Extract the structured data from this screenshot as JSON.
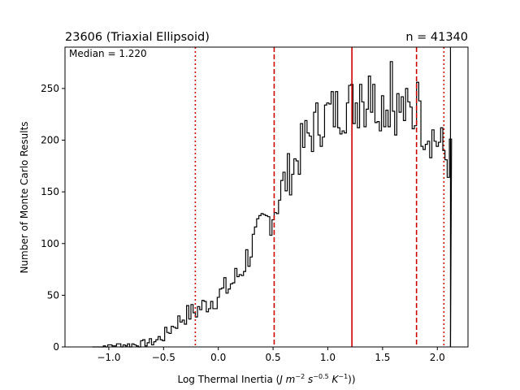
{
  "chart_data": {
    "type": "histogram",
    "title_left": "23606 (Triaxial Ellipsoid)",
    "title_right": "n = 41340",
    "annotation": "Median = 1.220",
    "xlabel": "Log Thermal Inertia (J m⁻² s⁻⁰·⁵ K⁻¹))",
    "ylabel": "Number of Monte Carlo Results",
    "xlim": [
      -1.4,
      2.28
    ],
    "ylim": [
      0,
      290
    ],
    "xticks": [
      -1.0,
      -0.5,
      0.0,
      0.5,
      1.0,
      1.5,
      2.0
    ],
    "xtick_labels": [
      "−1.0",
      "−0.5",
      "0.0",
      "0.5",
      "1.0",
      "1.5",
      "2.0"
    ],
    "yticks": [
      0,
      50,
      100,
      150,
      200,
      250
    ],
    "ytick_labels": [
      "0",
      "50",
      "100",
      "150",
      "200",
      "250"
    ],
    "median": 1.22,
    "dashed_lines": [
      0.51,
      1.81
    ],
    "dotted_lines": [
      -0.21,
      2.06
    ],
    "cutoff_line": 2.12,
    "line_color": "#cc0000",
    "hist_color": "#000000",
    "profile": [
      [
        -1.15,
        0
      ],
      [
        -1.0,
        1
      ],
      [
        -0.9,
        2
      ],
      [
        -0.8,
        2
      ],
      [
        -0.7,
        3
      ],
      [
        -0.6,
        5
      ],
      [
        -0.5,
        10
      ],
      [
        -0.4,
        22
      ],
      [
        -0.3,
        30
      ],
      [
        -0.2,
        35
      ],
      [
        -0.1,
        42
      ],
      [
        0.0,
        50
      ],
      [
        0.1,
        58
      ],
      [
        0.2,
        72
      ],
      [
        0.3,
        95
      ],
      [
        0.4,
        115
      ],
      [
        0.5,
        130
      ],
      [
        0.6,
        158
      ],
      [
        0.7,
        178
      ],
      [
        0.8,
        200
      ],
      [
        0.9,
        215
      ],
      [
        1.0,
        225
      ],
      [
        1.1,
        230
      ],
      [
        1.2,
        235
      ],
      [
        1.3,
        237
      ],
      [
        1.4,
        238
      ],
      [
        1.5,
        236
      ],
      [
        1.6,
        233
      ],
      [
        1.7,
        228
      ],
      [
        1.8,
        222
      ],
      [
        1.9,
        212
      ],
      [
        2.0,
        200
      ],
      [
        2.05,
        190
      ],
      [
        2.1,
        182
      ]
    ],
    "bin_width": 0.02,
    "hist_start": -1.15,
    "hist_end": 2.12,
    "peaks": [
      [
        1.57,
        276
      ],
      [
        1.3,
        254
      ],
      [
        1.82,
        256
      ],
      [
        1.38,
        262
      ]
    ]
  }
}
